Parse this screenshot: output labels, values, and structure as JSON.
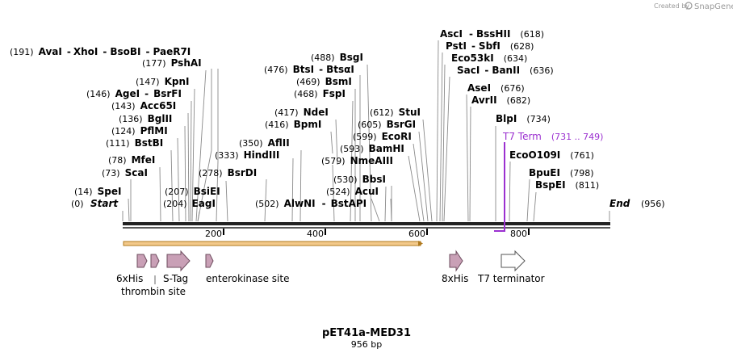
{
  "map": {
    "title": "pET41a-MED31",
    "subtitle": "956 bp",
    "length": 956,
    "start_label": "Start",
    "start_pos": "(0)",
    "end_label": "End",
    "end_pos": "(956)",
    "ticks": [
      "200",
      "400",
      "600",
      "800"
    ],
    "credit": "Created by",
    "brand": "SnapGene"
  },
  "sites": [
    {
      "pos": "(14)",
      "names": [
        "SpeI"
      ]
    },
    {
      "pos": "(73)",
      "names": [
        "ScaI"
      ]
    },
    {
      "pos": "(78)",
      "names": [
        "MfeI"
      ]
    },
    {
      "pos": "(111)",
      "names": [
        "BstBI"
      ]
    },
    {
      "pos": "(124)",
      "names": [
        "PflMI"
      ]
    },
    {
      "pos": "(136)",
      "names": [
        "BglII"
      ]
    },
    {
      "pos": "(143)",
      "names": [
        "Acc65I"
      ]
    },
    {
      "pos": "(146)",
      "names": [
        "AgeI",
        "BsrFI"
      ]
    },
    {
      "pos": "(147)",
      "names": [
        "KpnI"
      ]
    },
    {
      "pos": "(177)",
      "names": [
        "PshAI"
      ]
    },
    {
      "pos": "(191)",
      "names": [
        "AvaI",
        "XhoI",
        "BsoBI",
        "PaeR7I"
      ]
    },
    {
      "pos": "(204)",
      "names": [
        "EagI"
      ]
    },
    {
      "pos": "(207)",
      "names": [
        "BsiEI"
      ]
    },
    {
      "pos": "(278)",
      "names": [
        "BsrDI"
      ]
    },
    {
      "pos": "(333)",
      "names": [
        "HindIII"
      ]
    },
    {
      "pos": "(350)",
      "names": [
        "AflII"
      ]
    },
    {
      "pos": "(502)",
      "names": [
        "AlwNI"
      ]
    },
    {
      "pos": "(416)",
      "names": [
        "BpmI"
      ]
    },
    {
      "pos": "(417)",
      "names": [
        "NdeI"
      ]
    },
    {
      "pos": "(468)",
      "names": [
        "FspI"
      ]
    },
    {
      "pos": "(469)",
      "names": [
        "BsmI"
      ]
    },
    {
      "pos": "(476)",
      "names": [
        "BtsI",
        "BtsαI"
      ]
    },
    {
      "pos": "(488)",
      "names": [
        "BsgI"
      ]
    },
    {
      "pos": "(524)",
      "names": [
        "AcuI"
      ]
    },
    {
      "pos": "(530)",
      "names": [
        "BbsI"
      ]
    },
    {
      "pos": "(579)",
      "names": [
        "NmeAIII"
      ]
    },
    {
      "pos": "(593)",
      "names": [
        "BamHI"
      ]
    },
    {
      "pos": "(599)",
      "names": [
        "EcoRI"
      ]
    },
    {
      "pos": "(605)",
      "names": [
        "BsrGI"
      ]
    },
    {
      "pos": "(612)",
      "names": [
        "StuI"
      ]
    },
    {
      "pos": "",
      "names": [
        "BstAPI"
      ]
    },
    {
      "pos": "(618)",
      "names": [
        "AscI",
        "BssHII"
      ]
    },
    {
      "pos": "(628)",
      "names": [
        "PstI",
        "SbfI"
      ]
    },
    {
      "pos": "(634)",
      "names": [
        "Eco53kI"
      ]
    },
    {
      "pos": "(636)",
      "names": [
        "SacI",
        "BanII"
      ]
    },
    {
      "pos": "(676)",
      "names": [
        "AseI"
      ]
    },
    {
      "pos": "(682)",
      "names": [
        "AvrII"
      ]
    },
    {
      "pos": "(734)",
      "names": [
        "BlpI"
      ]
    },
    {
      "pos": "(761)",
      "names": [
        "EcoO109I"
      ]
    },
    {
      "pos": "(798)",
      "names": [
        "BpuEI"
      ]
    },
    {
      "pos": "(811)",
      "names": [
        "BspEI"
      ]
    }
  ],
  "t7_term": {
    "name": "T7 Term",
    "range": "(731 .. 749)"
  },
  "features": [
    {
      "label": "6xHis"
    },
    {
      "label": "thrombin site"
    },
    {
      "label": "S-Tag"
    },
    {
      "label": "enterokinase site"
    },
    {
      "label": "8xHis"
    },
    {
      "label": "T7 terminator"
    }
  ],
  "colors": {
    "backbone": "#222222",
    "feature_fill": "#c9a0b6",
    "feature_stroke": "#6d4c5e",
    "orf_fill": "#f3c98b",
    "orf_stroke": "#b07a1e",
    "purple": "#9b30d0"
  }
}
